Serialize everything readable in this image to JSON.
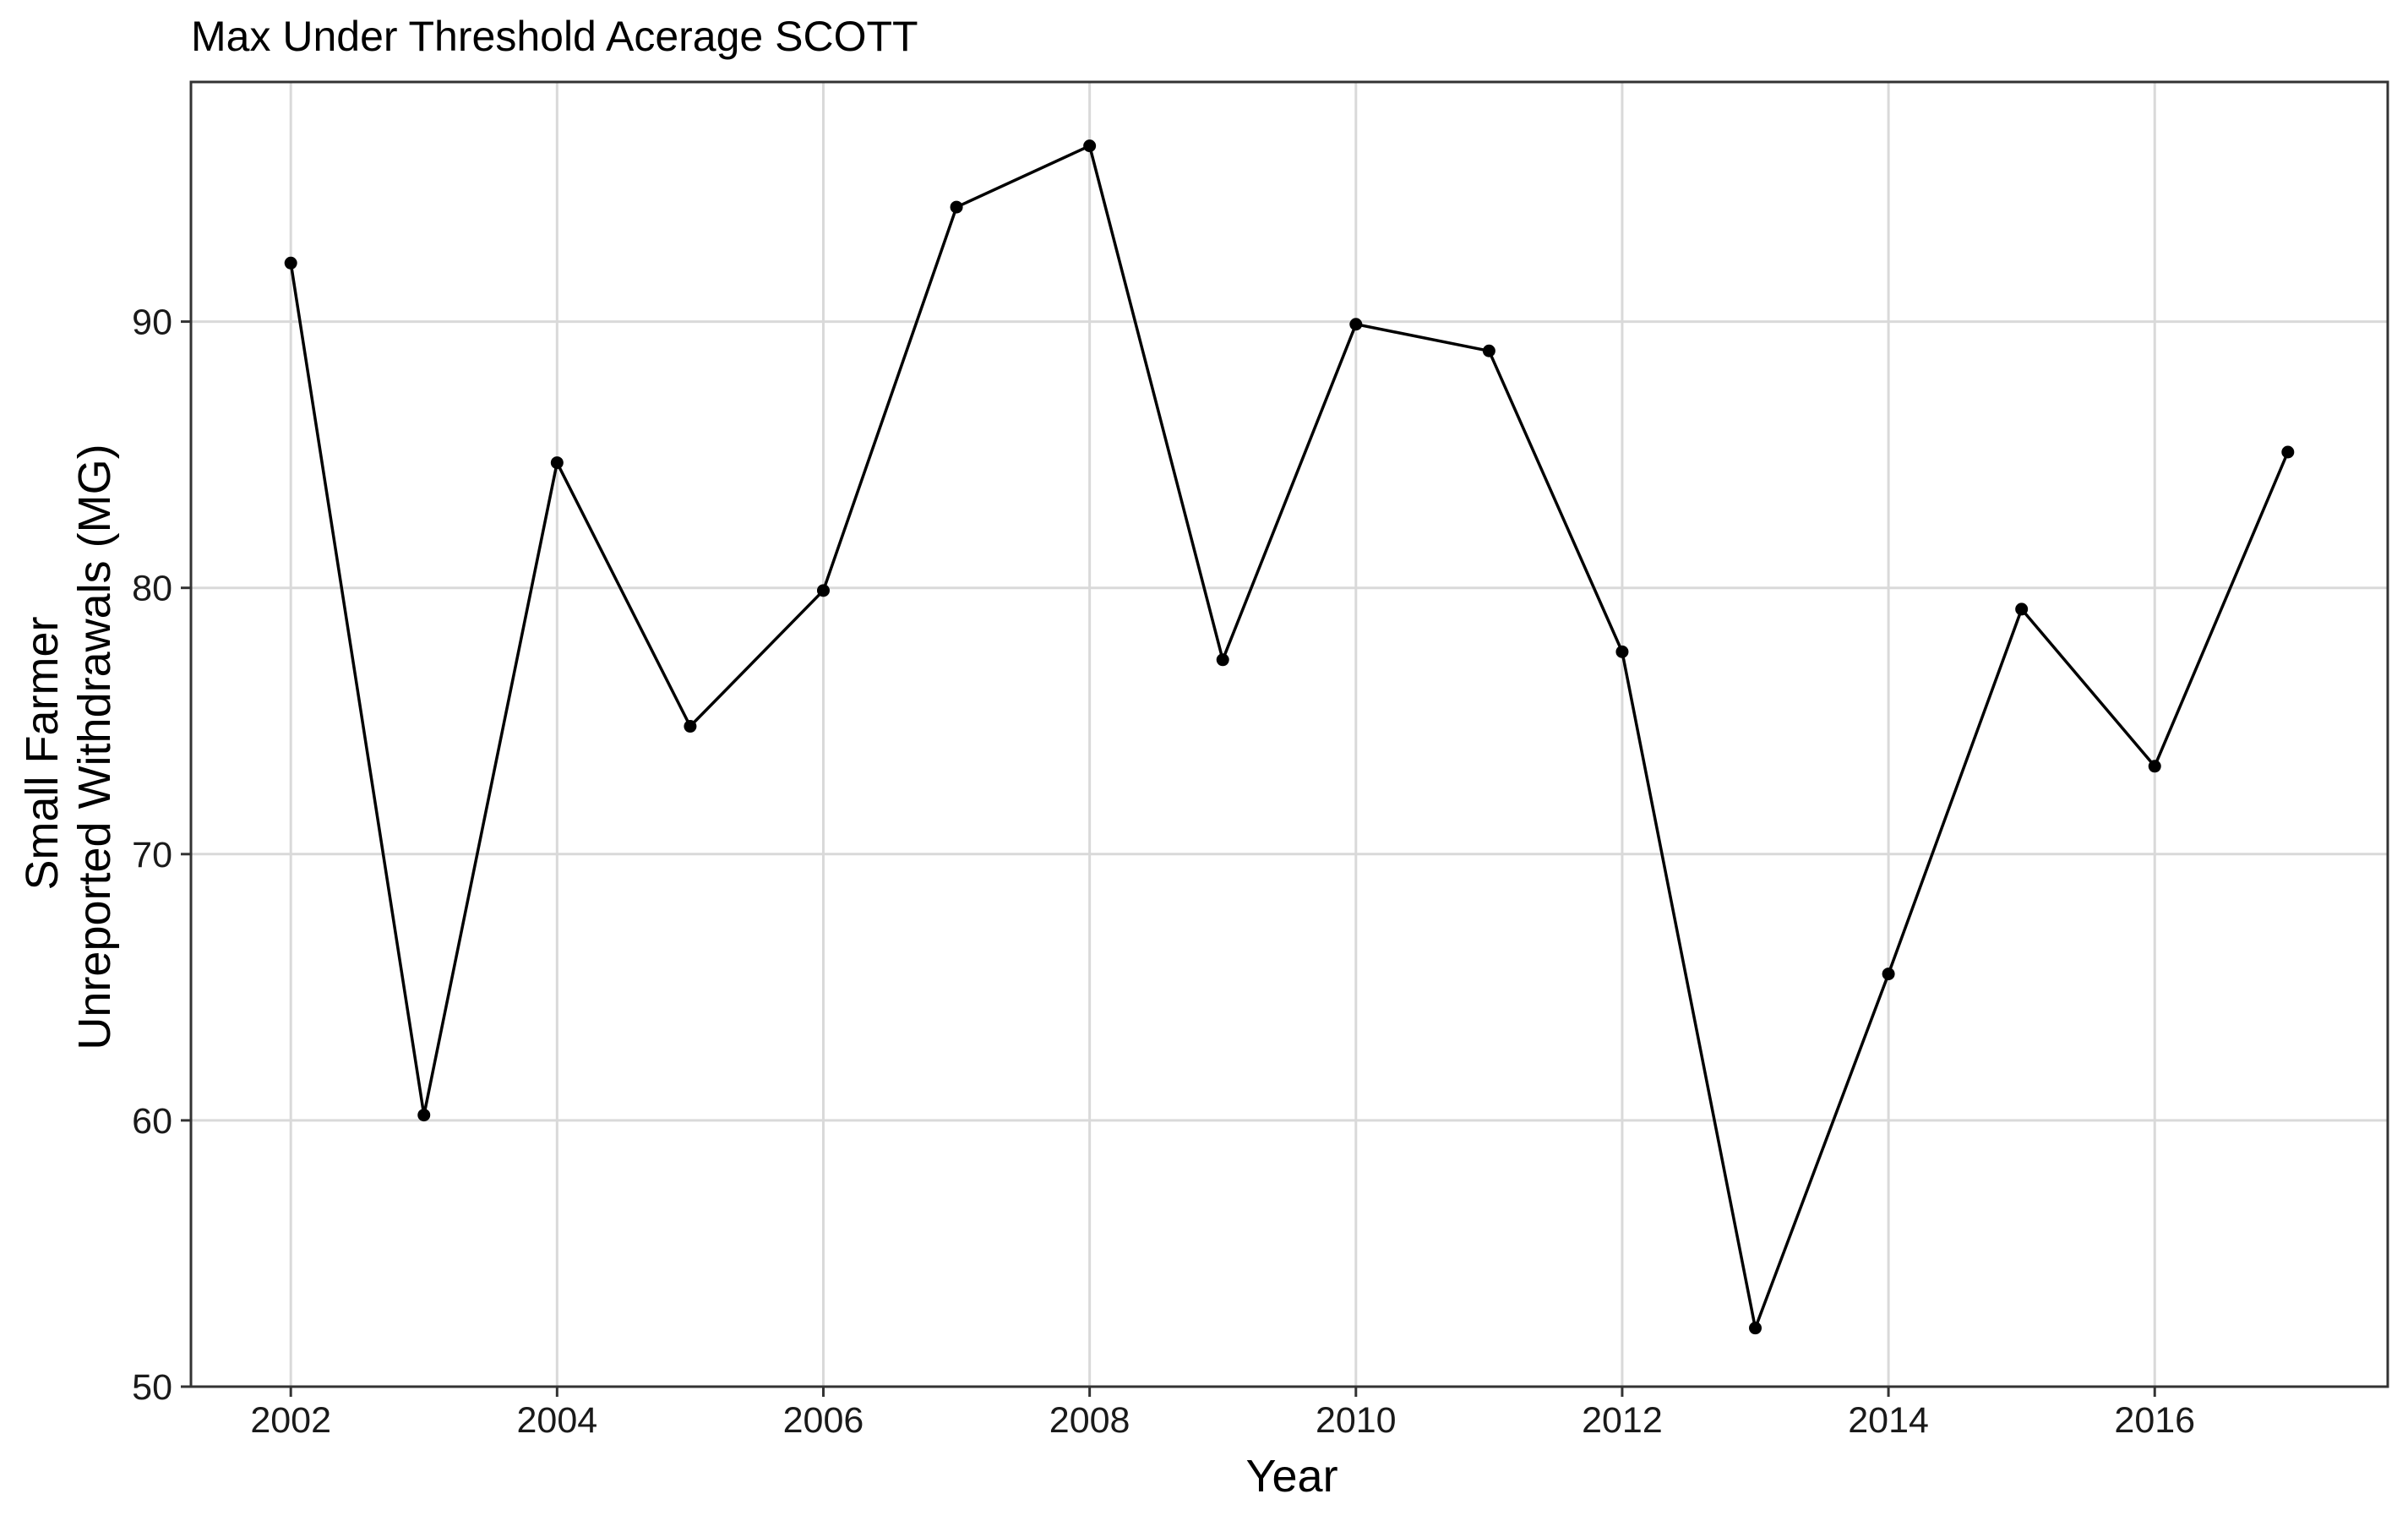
{
  "chart_data": {
    "type": "line",
    "title": "Max Under Threshold Acerage SCOTT",
    "xlabel": "Year",
    "ylabel_lines": [
      "Small Farmer",
      "Unreported Withdrawals (MG)"
    ],
    "x": [
      2002,
      2003,
      2004,
      2005,
      2006,
      2007,
      2008,
      2009,
      2010,
      2011,
      2012,
      2013,
      2014,
      2015,
      2016,
      2017
    ],
    "series": [
      {
        "values": [
          92.2,
          60.2,
          84.7,
          74.8,
          79.9,
          94.3,
          96.6,
          77.3,
          89.9,
          88.9,
          77.6,
          52.2,
          65.5,
          79.2,
          73.3,
          85.1
        ]
      }
    ],
    "xlim": [
      2001.25,
      2017.75
    ],
    "ylim": [
      50,
      99
    ],
    "x_ticks": [
      "2002",
      "2004",
      "2006",
      "2008",
      "2010",
      "2012",
      "2014",
      "2016"
    ],
    "y_ticks": [
      "50",
      "60",
      "70",
      "80",
      "90"
    ],
    "grid": true,
    "colors": {
      "line": "#000000",
      "grid": "#d9d9d9",
      "frame": "#333333"
    }
  }
}
